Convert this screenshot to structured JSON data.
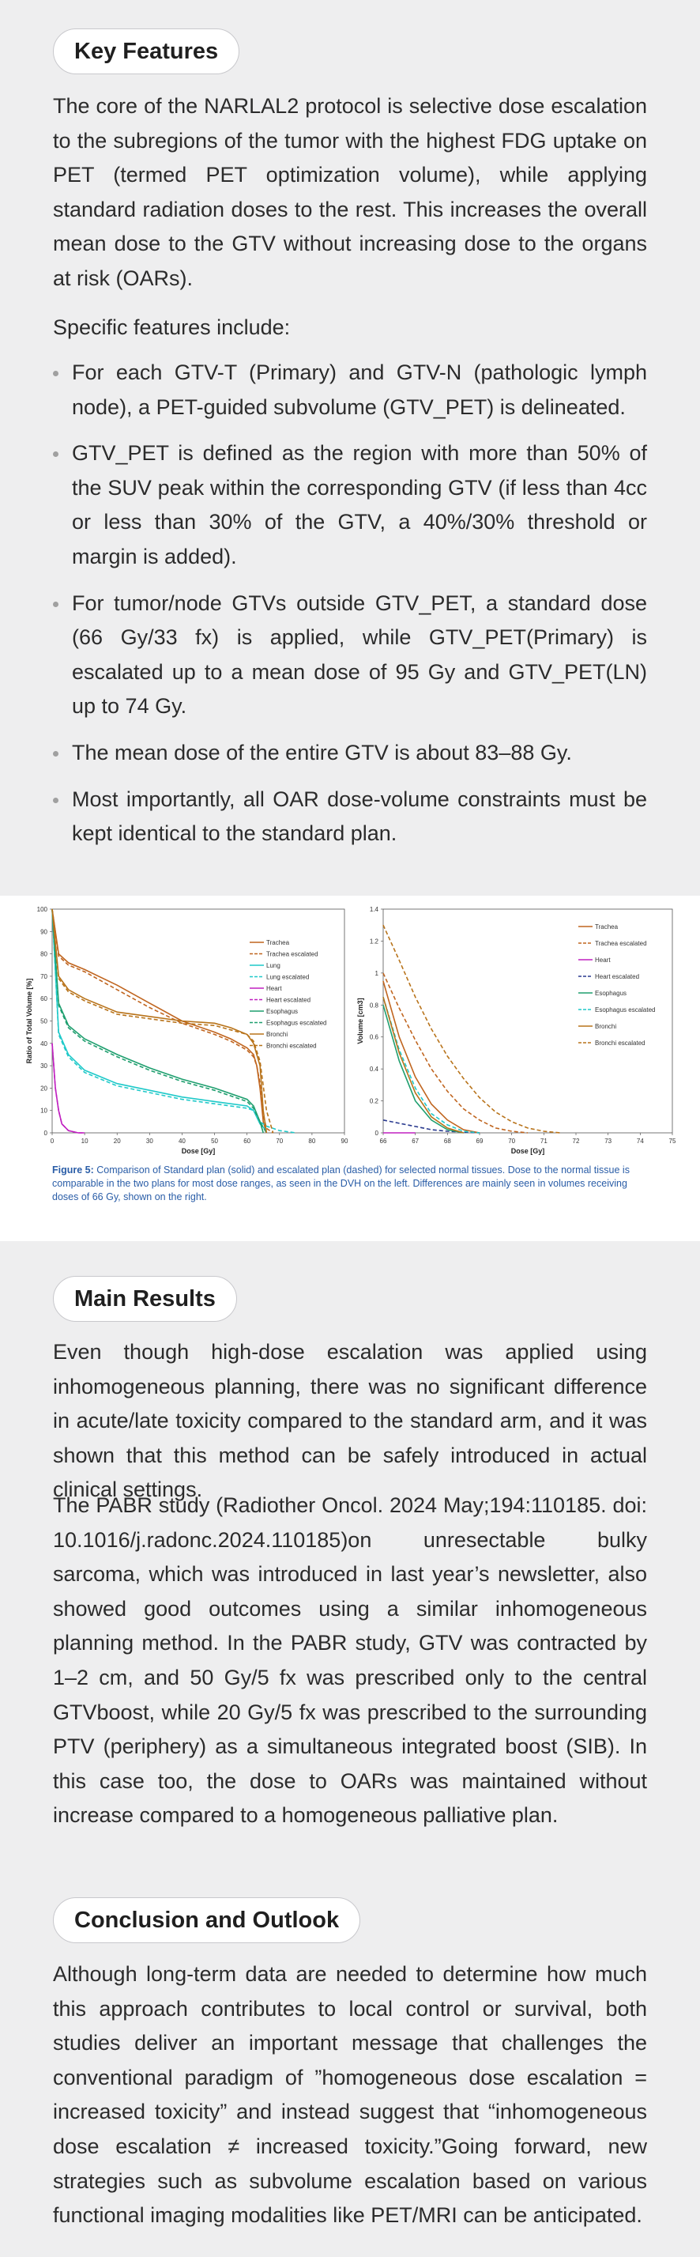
{
  "sections": {
    "key_features": {
      "heading": "Key Features",
      "intro": "The core of the NARLAL2 protocol is selective dose escalation to the subregions of the tumor with the highest FDG uptake on PET (termed PET optimization volume), while applying standard radiation doses to the rest. This increases the overall mean dose to the GTV without increasing dose to the organs at risk (OARs).",
      "lead": "Specific features include:",
      "bullets": [
        "For each GTV-T (Primary) and GTV-N (pathologic lymph node), a PET-guided subvolume (GTV_PET) is delineated.",
        "GTV_PET is defined as the region with more than 50% of the SUV peak within the corresponding GTV (if less than 4cc or less than 30% of the GTV, a 40%/30% threshold or margin is added).",
        "For tumor/node GTVs outside GTV_PET, a standard dose (66 Gy/33 fx) is applied, while GTV_PET(Primary) is escalated up to a mean dose of 95 Gy and GTV_PET(LN) up to 74 Gy.",
        "The mean dose of the entire GTV is about 83–88 Gy.",
        "Most importantly, all OAR dose-volume constraints must be kept identical to the standard plan."
      ]
    },
    "main_results": {
      "heading": "Main Results",
      "p1": "Even though high-dose escalation was applied using inhomogeneous planning, there was no significant difference in acute/late toxicity compared to the standard arm, and it was shown that this method can be safely introduced in actual clinical settings.",
      "p2": "The PABR study (Radiother Oncol. 2024 May;194:110185. doi: 10.1016/j.radonc.2024.110185)on unresectable bulky sarcoma, which was introduced in last year’s newsletter, also showed good outcomes using a similar inhomogeneous planning method. In the PABR study, GTV was contracted by 1–2 cm, and 50 Gy/5 fx was prescribed only to the central GTVboost, while 20 Gy/5 fx was prescribed to the surrounding PTV (periphery) as a simultaneous integrated boost (SIB). In this case too, the dose to OARs was maintained without increase compared to a homogeneous palliative plan."
    },
    "conclusion": {
      "heading": "Conclusion and Outlook",
      "p1": "Although long-term data are needed to determine how much this approach contributes to local control or survival, both studies deliver an important message that challenges the conventional paradigm of ”homogeneous dose escalation = increased toxicity” and instead suggest that “inhomogeneous dose escalation ≠ increased toxicity.”Going forward, new strategies such as subvolume escalation based on various functional imaging modalities like PET/MRI can be anticipated."
    }
  },
  "figure": {
    "caption_label": "Figure 5:",
    "caption_text": "Comparison of Standard plan (solid) and escalated plan (dashed) for selected normal tissues. Dose to the normal tissue is comparable in the two plans for most dose ranges, as seen in the DVH on the left. Differences are mainly seen in volumes receiving doses of 66 Gy, shown on the right."
  },
  "chart_data": [
    {
      "type": "line",
      "xlabel": "Dose [Gy]",
      "ylabel": "Ratio of Total Volume [%]",
      "xlim": [
        0,
        90
      ],
      "ylim": [
        0,
        100
      ],
      "x_ticks": [
        "0",
        "10",
        "20",
        "30",
        "40",
        "50",
        "60",
        "70",
        "80",
        "90"
      ],
      "y_ticks": [
        "0",
        "10",
        "20",
        "30",
        "40",
        "50",
        "60",
        "70",
        "80",
        "90",
        "100"
      ],
      "legend_position": "top-right",
      "series": [
        {
          "name": "Trachea",
          "color": "#c0651f",
          "dash": false,
          "x": [
            0,
            2,
            5,
            10,
            20,
            30,
            40,
            50,
            55,
            60,
            62,
            63,
            64,
            65,
            66
          ],
          "y": [
            100,
            80,
            76,
            73,
            66,
            58,
            50,
            45,
            42,
            38,
            35,
            30,
            20,
            5,
            0
          ]
        },
        {
          "name": "Trachea escalated",
          "color": "#c0651f",
          "dash": true,
          "x": [
            0,
            2,
            5,
            10,
            20,
            30,
            40,
            50,
            55,
            60,
            62,
            63,
            64,
            65,
            66,
            68
          ],
          "y": [
            100,
            79,
            75,
            72,
            64,
            56,
            49,
            44,
            41,
            37,
            34,
            30,
            22,
            8,
            2,
            0
          ]
        },
        {
          "name": "Lung",
          "color": "#1fc9c9",
          "dash": false,
          "x": [
            0,
            2,
            5,
            10,
            20,
            30,
            40,
            50,
            60,
            62,
            64,
            66
          ],
          "y": [
            100,
            45,
            35,
            28,
            22,
            19,
            16,
            14,
            12,
            10,
            4,
            1
          ]
        },
        {
          "name": "Lung escalated",
          "color": "#1fc9c9",
          "dash": true,
          "x": [
            0,
            2,
            5,
            10,
            20,
            30,
            40,
            50,
            60,
            62,
            64,
            66,
            70,
            75
          ],
          "y": [
            100,
            44,
            34,
            27,
            21,
            18,
            15,
            13,
            11,
            10,
            5,
            3,
            1,
            0
          ]
        },
        {
          "name": "Heart",
          "color": "#c020c0",
          "dash": false,
          "x": [
            0,
            1,
            2,
            3,
            5,
            8,
            10
          ],
          "y": [
            40,
            20,
            10,
            4,
            1,
            0,
            0
          ]
        },
        {
          "name": "Heart escalated",
          "color": "#c020c0",
          "dash": true,
          "x": [
            0,
            1,
            2,
            3,
            5,
            8,
            10
          ],
          "y": [
            40,
            20,
            10,
            4,
            1,
            0,
            0
          ]
        },
        {
          "name": "Esophagus",
          "color": "#1f9f6f",
          "dash": false,
          "x": [
            0,
            2,
            5,
            10,
            20,
            30,
            40,
            50,
            60,
            62,
            64,
            65
          ],
          "y": [
            100,
            58,
            48,
            42,
            35,
            29,
            24,
            20,
            15,
            12,
            5,
            0
          ]
        },
        {
          "name": "Esophagus escalated",
          "color": "#1f9f6f",
          "dash": true,
          "x": [
            0,
            2,
            5,
            10,
            20,
            30,
            40,
            50,
            60,
            62,
            64,
            66
          ],
          "y": [
            100,
            57,
            47,
            41,
            34,
            28,
            23,
            19,
            14,
            11,
            5,
            0
          ]
        },
        {
          "name": "Bronchi",
          "color": "#b8731a",
          "dash": false,
          "x": [
            0,
            2,
            5,
            10,
            20,
            30,
            40,
            50,
            55,
            60,
            62,
            64,
            65,
            66
          ],
          "y": [
            100,
            70,
            64,
            60,
            54,
            52,
            50,
            49,
            47,
            44,
            40,
            30,
            10,
            0
          ]
        },
        {
          "name": "Bronchi escalated",
          "color": "#b8731a",
          "dash": true,
          "x": [
            0,
            2,
            5,
            10,
            20,
            30,
            40,
            50,
            55,
            60,
            62,
            64,
            66,
            68
          ],
          "y": [
            100,
            69,
            63,
            59,
            53,
            51,
            49,
            48,
            46,
            44,
            41,
            32,
            10,
            0
          ]
        }
      ]
    },
    {
      "type": "line",
      "xlabel": "Dose [Gy]",
      "ylabel": "Volume [cm3]",
      "xlim": [
        66,
        75
      ],
      "ylim": [
        0,
        1.4
      ],
      "x_ticks": [
        "66",
        "67",
        "68",
        "69",
        "70",
        "71",
        "72",
        "73",
        "74",
        "75"
      ],
      "y_ticks": [
        "0",
        "0.2",
        "0.4",
        "0.6",
        "0.8",
        "1",
        "1.2",
        "1.4"
      ],
      "legend_position": "top-right",
      "series": [
        {
          "name": "Trachea",
          "color": "#c0651f",
          "dash": false,
          "x": [
            66,
            66.5,
            67,
            67.5,
            68,
            68.5,
            69
          ],
          "y": [
            0.95,
            0.6,
            0.35,
            0.18,
            0.08,
            0.02,
            0
          ]
        },
        {
          "name": "Trachea escalated",
          "color": "#c0651f",
          "dash": true,
          "x": [
            66,
            66.5,
            67,
            67.5,
            68,
            68.5,
            69,
            69.5,
            70,
            70.5
          ],
          "y": [
            1.0,
            0.78,
            0.58,
            0.4,
            0.26,
            0.15,
            0.08,
            0.03,
            0.01,
            0
          ]
        },
        {
          "name": "Heart",
          "color": "#c020c0",
          "dash": false,
          "x": [
            66,
            67
          ],
          "y": [
            0,
            0
          ]
        },
        {
          "name": "Heart escalated",
          "color": "#2a3a8f",
          "dash": true,
          "x": [
            66,
            66.5,
            67,
            67.5,
            68,
            69
          ],
          "y": [
            0.08,
            0.06,
            0.04,
            0.02,
            0.01,
            0
          ]
        },
        {
          "name": "Esophagus",
          "color": "#1f9f6f",
          "dash": false,
          "x": [
            66,
            66.5,
            67,
            67.5,
            68,
            68.5
          ],
          "y": [
            0.8,
            0.45,
            0.2,
            0.08,
            0.02,
            0
          ]
        },
        {
          "name": "Esophagus escalated",
          "color": "#1fc9c9",
          "dash": true,
          "x": [
            66,
            66.5,
            67,
            67.5,
            68,
            68.5,
            69
          ],
          "y": [
            0.85,
            0.52,
            0.28,
            0.12,
            0.05,
            0.01,
            0
          ]
        },
        {
          "name": "Bronchi",
          "color": "#b8731a",
          "dash": false,
          "x": [
            66,
            66.5,
            67,
            67.5,
            68,
            68.5
          ],
          "y": [
            0.85,
            0.5,
            0.25,
            0.1,
            0.03,
            0
          ]
        },
        {
          "name": "Bronchi escalated",
          "color": "#b8731a",
          "dash": true,
          "x": [
            66,
            66.5,
            67,
            67.5,
            68,
            68.5,
            69,
            69.5,
            70,
            70.5,
            71,
            71.5
          ],
          "y": [
            1.3,
            1.08,
            0.85,
            0.65,
            0.48,
            0.34,
            0.22,
            0.13,
            0.07,
            0.03,
            0.01,
            0
          ]
        }
      ]
    }
  ]
}
